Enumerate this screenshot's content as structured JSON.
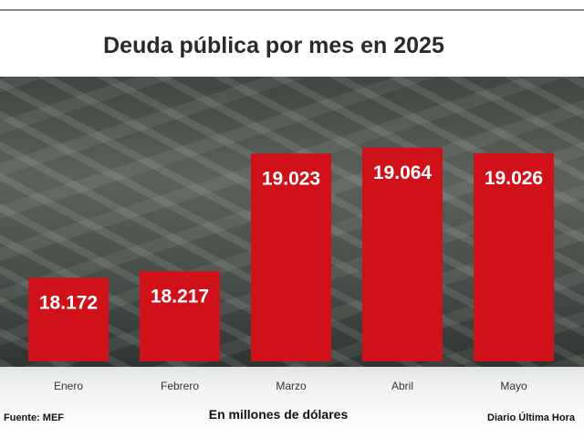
{
  "chart_data": {
    "type": "bar",
    "title": "Deuda pública por mes en 2025",
    "categories": [
      "Enero",
      "Febrero",
      "Marzo",
      "Abril",
      "Mayo"
    ],
    "values": [
      18.172,
      18.217,
      19.023,
      19.064,
      19.026
    ],
    "value_labels": [
      "18.172",
      "18.217",
      "19.023",
      "19.064",
      "19.026"
    ],
    "xlabel": "En millones de dólares",
    "ylabel": "",
    "bar_color": "#d0111a",
    "legend": "none",
    "grid": false
  },
  "source": "Fuente: MEF",
  "credit": "Diario Última Hora"
}
